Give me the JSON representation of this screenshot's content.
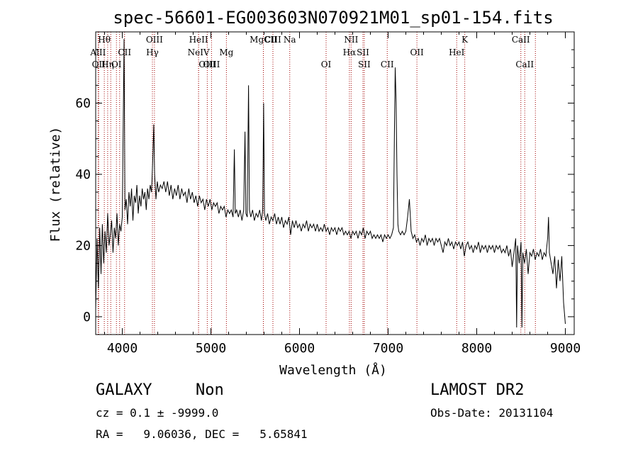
{
  "chart_data": {
    "type": "line",
    "title": "spec-56601-EG003603N070921M01_sp01-154.fits",
    "xlabel": "Wavelength (Å)",
    "ylabel": "Flux (relative)",
    "xlim": [
      3700,
      9100
    ],
    "ylim": [
      -5,
      80
    ],
    "xticks": [
      4000,
      5000,
      6000,
      7000,
      8000,
      9000
    ],
    "yticks": [
      0,
      20,
      40,
      60
    ],
    "grid": false,
    "series": [
      {
        "color": "#000000",
        "points": [
          [
            3700,
            2
          ],
          [
            3715,
            22
          ],
          [
            3730,
            8
          ],
          [
            3745,
            25
          ],
          [
            3760,
            12
          ],
          [
            3775,
            26
          ],
          [
            3790,
            15
          ],
          [
            3805,
            24
          ],
          [
            3820,
            18
          ],
          [
            3835,
            29
          ],
          [
            3850,
            20
          ],
          [
            3865,
            23
          ],
          [
            3880,
            27
          ],
          [
            3895,
            18
          ],
          [
            3910,
            25
          ],
          [
            3925,
            22
          ],
          [
            3940,
            29
          ],
          [
            3955,
            20
          ],
          [
            3970,
            26
          ],
          [
            3985,
            24
          ],
          [
            4000,
            28
          ],
          [
            4020,
            78
          ],
          [
            4030,
            30
          ],
          [
            4045,
            33
          ],
          [
            4060,
            26
          ],
          [
            4075,
            35
          ],
          [
            4090,
            31
          ],
          [
            4105,
            36
          ],
          [
            4120,
            27
          ],
          [
            4135,
            34
          ],
          [
            4150,
            32
          ],
          [
            4165,
            37
          ],
          [
            4180,
            29
          ],
          [
            4195,
            34
          ],
          [
            4210,
            31
          ],
          [
            4225,
            36
          ],
          [
            4240,
            33
          ],
          [
            4255,
            35
          ],
          [
            4270,
            30
          ],
          [
            4285,
            36
          ],
          [
            4300,
            33
          ],
          [
            4315,
            37
          ],
          [
            4330,
            35
          ],
          [
            4345,
            45
          ],
          [
            4355,
            54
          ],
          [
            4365,
            40
          ],
          [
            4380,
            33
          ],
          [
            4395,
            38
          ],
          [
            4410,
            35
          ],
          [
            4430,
            37
          ],
          [
            4450,
            36
          ],
          [
            4470,
            38
          ],
          [
            4490,
            35
          ],
          [
            4510,
            38
          ],
          [
            4530,
            34
          ],
          [
            4550,
            37
          ],
          [
            4570,
            33
          ],
          [
            4590,
            36
          ],
          [
            4610,
            34
          ],
          [
            4630,
            37
          ],
          [
            4650,
            33
          ],
          [
            4670,
            36
          ],
          [
            4690,
            34
          ],
          [
            4710,
            35
          ],
          [
            4730,
            32
          ],
          [
            4750,
            36
          ],
          [
            4770,
            33
          ],
          [
            4790,
            35
          ],
          [
            4810,
            32
          ],
          [
            4830,
            34
          ],
          [
            4850,
            31
          ],
          [
            4870,
            34
          ],
          [
            4890,
            32
          ],
          [
            4910,
            33
          ],
          [
            4930,
            30
          ],
          [
            4950,
            33
          ],
          [
            4970,
            31
          ],
          [
            4990,
            33
          ],
          [
            5010,
            30
          ],
          [
            5030,
            32
          ],
          [
            5050,
            31
          ],
          [
            5070,
            32
          ],
          [
            5090,
            29
          ],
          [
            5110,
            31
          ],
          [
            5130,
            30
          ],
          [
            5150,
            31
          ],
          [
            5170,
            28
          ],
          [
            5190,
            30
          ],
          [
            5210,
            29
          ],
          [
            5230,
            30
          ],
          [
            5250,
            28
          ],
          [
            5265,
            47
          ],
          [
            5275,
            29
          ],
          [
            5290,
            30
          ],
          [
            5310,
            28
          ],
          [
            5330,
            30
          ],
          [
            5350,
            27
          ],
          [
            5370,
            30
          ],
          [
            5385,
            52
          ],
          [
            5395,
            29
          ],
          [
            5410,
            28
          ],
          [
            5425,
            65
          ],
          [
            5435,
            30
          ],
          [
            5450,
            28
          ],
          [
            5470,
            30
          ],
          [
            5490,
            27
          ],
          [
            5510,
            29
          ],
          [
            5530,
            28
          ],
          [
            5550,
            30
          ],
          [
            5570,
            27
          ],
          [
            5585,
            30
          ],
          [
            5595,
            60
          ],
          [
            5605,
            29
          ],
          [
            5620,
            27
          ],
          [
            5640,
            29
          ],
          [
            5660,
            26
          ],
          [
            5680,
            28
          ],
          [
            5700,
            27
          ],
          [
            5720,
            29
          ],
          [
            5740,
            26
          ],
          [
            5760,
            28
          ],
          [
            5780,
            26
          ],
          [
            5800,
            28
          ],
          [
            5820,
            25
          ],
          [
            5840,
            27
          ],
          [
            5860,
            26
          ],
          [
            5880,
            28
          ],
          [
            5900,
            23
          ],
          [
            5920,
            27
          ],
          [
            5940,
            25
          ],
          [
            5960,
            27
          ],
          [
            5980,
            25
          ],
          [
            6000,
            26
          ],
          [
            6020,
            24
          ],
          [
            6040,
            26
          ],
          [
            6060,
            25
          ],
          [
            6080,
            27
          ],
          [
            6100,
            24
          ],
          [
            6120,
            26
          ],
          [
            6140,
            25
          ],
          [
            6160,
            26
          ],
          [
            6180,
            24
          ],
          [
            6200,
            26
          ],
          [
            6220,
            24
          ],
          [
            6240,
            25
          ],
          [
            6260,
            24
          ],
          [
            6280,
            26
          ],
          [
            6300,
            24
          ],
          [
            6320,
            25
          ],
          [
            6340,
            23
          ],
          [
            6360,
            25
          ],
          [
            6380,
            24
          ],
          [
            6400,
            25
          ],
          [
            6420,
            23
          ],
          [
            6440,
            25
          ],
          [
            6460,
            24
          ],
          [
            6480,
            25
          ],
          [
            6500,
            23
          ],
          [
            6520,
            24
          ],
          [
            6540,
            23
          ],
          [
            6560,
            24
          ],
          [
            6580,
            22
          ],
          [
            6600,
            24
          ],
          [
            6620,
            23
          ],
          [
            6640,
            24
          ],
          [
            6660,
            22
          ],
          [
            6680,
            24
          ],
          [
            6700,
            23
          ],
          [
            6720,
            25
          ],
          [
            6740,
            22
          ],
          [
            6760,
            24
          ],
          [
            6780,
            23
          ],
          [
            6800,
            24
          ],
          [
            6820,
            22
          ],
          [
            6840,
            23
          ],
          [
            6860,
            22
          ],
          [
            6880,
            23
          ],
          [
            6900,
            22
          ],
          [
            6920,
            23
          ],
          [
            6940,
            21
          ],
          [
            6960,
            23
          ],
          [
            6980,
            22
          ],
          [
            7000,
            23
          ],
          [
            7020,
            22
          ],
          [
            7040,
            23
          ],
          [
            7060,
            25
          ],
          [
            7070,
            50
          ],
          [
            7080,
            70
          ],
          [
            7090,
            60
          ],
          [
            7100,
            40
          ],
          [
            7110,
            26
          ],
          [
            7120,
            24
          ],
          [
            7140,
            23
          ],
          [
            7160,
            24
          ],
          [
            7180,
            23
          ],
          [
            7200,
            24
          ],
          [
            7220,
            28
          ],
          [
            7240,
            33
          ],
          [
            7260,
            24
          ],
          [
            7280,
            22
          ],
          [
            7300,
            23
          ],
          [
            7320,
            21
          ],
          [
            7340,
            22
          ],
          [
            7360,
            20
          ],
          [
            7380,
            22
          ],
          [
            7400,
            21
          ],
          [
            7420,
            23
          ],
          [
            7440,
            20
          ],
          [
            7460,
            22
          ],
          [
            7480,
            21
          ],
          [
            7500,
            22
          ],
          [
            7520,
            20
          ],
          [
            7540,
            22
          ],
          [
            7560,
            21
          ],
          [
            7580,
            22
          ],
          [
            7600,
            20
          ],
          [
            7620,
            18
          ],
          [
            7640,
            21
          ],
          [
            7660,
            20
          ],
          [
            7680,
            22
          ],
          [
            7700,
            20
          ],
          [
            7720,
            21
          ],
          [
            7740,
            19
          ],
          [
            7760,
            21
          ],
          [
            7780,
            20
          ],
          [
            7800,
            21
          ],
          [
            7820,
            19
          ],
          [
            7840,
            21
          ],
          [
            7860,
            17
          ],
          [
            7880,
            20
          ],
          [
            7900,
            21
          ],
          [
            7920,
            19
          ],
          [
            7940,
            20
          ],
          [
            7960,
            18
          ],
          [
            7980,
            20
          ],
          [
            8000,
            19
          ],
          [
            8020,
            21
          ],
          [
            8040,
            18
          ],
          [
            8060,
            20
          ],
          [
            8080,
            19
          ],
          [
            8100,
            20
          ],
          [
            8120,
            18
          ],
          [
            8140,
            20
          ],
          [
            8160,
            19
          ],
          [
            8180,
            20
          ],
          [
            8200,
            18
          ],
          [
            8220,
            20
          ],
          [
            8240,
            19
          ],
          [
            8260,
            20
          ],
          [
            8280,
            18
          ],
          [
            8300,
            19
          ],
          [
            8320,
            18
          ],
          [
            8340,
            20
          ],
          [
            8360,
            17
          ],
          [
            8380,
            19
          ],
          [
            8400,
            14
          ],
          [
            8420,
            18
          ],
          [
            8440,
            22
          ],
          [
            8450,
            -3
          ],
          [
            8460,
            20
          ],
          [
            8480,
            15
          ],
          [
            8500,
            21
          ],
          [
            8510,
            -3
          ],
          [
            8520,
            18
          ],
          [
            8540,
            15
          ],
          [
            8560,
            19
          ],
          [
            8580,
            12
          ],
          [
            8600,
            18
          ],
          [
            8620,
            17
          ],
          [
            8640,
            19
          ],
          [
            8660,
            16
          ],
          [
            8680,
            18
          ],
          [
            8700,
            17
          ],
          [
            8720,
            19
          ],
          [
            8740,
            16
          ],
          [
            8760,
            18
          ],
          [
            8780,
            17
          ],
          [
            8800,
            22
          ],
          [
            8810,
            28
          ],
          [
            8820,
            18
          ],
          [
            8840,
            15
          ],
          [
            8860,
            12
          ],
          [
            8880,
            17
          ],
          [
            8900,
            8
          ],
          [
            8920,
            16
          ],
          [
            8940,
            10
          ],
          [
            8960,
            17
          ],
          [
            8980,
            4
          ],
          [
            9000,
            -2
          ]
        ]
      }
    ],
    "lines": [
      {
        "w": 3727,
        "label": "AlII",
        "row": 1
      },
      {
        "w": 3734,
        "label": "OII",
        "row": 2
      },
      {
        "w": 3797,
        "label": "Hθ",
        "row": 0
      },
      {
        "w": 3835,
        "label": "Hη",
        "row": 2
      },
      {
        "w": 3870,
        "label": "",
        "row": 0
      },
      {
        "w": 3934,
        "label": "OI",
        "row": 2
      },
      {
        "w": 3970,
        "label": "",
        "row": 0
      },
      {
        "w": 4026,
        "label": "CII",
        "row": 1
      },
      {
        "w": 4340,
        "label": "Hγ",
        "row": 1
      },
      {
        "w": 4363,
        "label": "OIII",
        "row": 0
      },
      {
        "w": 4861,
        "label": "NeIV",
        "row": 1
      },
      {
        "w": 4861,
        "label": "HeII",
        "row": 0
      },
      {
        "w": 4959,
        "label": "OIII",
        "row": 2
      },
      {
        "w": 5007,
        "label": "OIII",
        "row": 2
      },
      {
        "w": 5175,
        "label": "Mg",
        "row": 1
      },
      {
        "w": 5592,
        "label": "MgCII",
        "row": 0
      },
      {
        "w": 5700,
        "label": "CIII",
        "row": 0
      },
      {
        "w": 5890,
        "label": "Na",
        "row": 0
      },
      {
        "w": 6300,
        "label": "OI",
        "row": 2
      },
      {
        "w": 6563,
        "label": "Hα",
        "row": 1
      },
      {
        "w": 6583,
        "label": "NII",
        "row": 0
      },
      {
        "w": 6716,
        "label": "SII",
        "row": 1
      },
      {
        "w": 6731,
        "label": "SII",
        "row": 2
      },
      {
        "w": 6990,
        "label": "CII",
        "row": 2
      },
      {
        "w": 7325,
        "label": "OII",
        "row": 1
      },
      {
        "w": 7774,
        "label": "HeI",
        "row": 1
      },
      {
        "w": 7865,
        "label": "K",
        "row": 0
      },
      {
        "w": 8498,
        "label": "CaII",
        "row": 0
      },
      {
        "w": 8542,
        "label": "CaII",
        "row": 2
      },
      {
        "w": 8662,
        "label": "",
        "row": 2
      }
    ]
  },
  "info": {
    "classification": "GALAXY",
    "subclass": "Non",
    "survey": "LAMOST DR2",
    "redshift_line": "cz = 0.1 ± -9999.0",
    "obs_date_line": "Obs-Date: 20131104",
    "coords_line": "RA =   9.06036, DEC =   5.65841"
  }
}
